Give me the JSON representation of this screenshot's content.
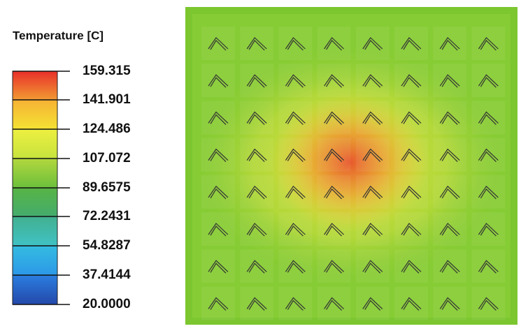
{
  "legend": {
    "title": "Temperature [C]",
    "labels": [
      "159.315",
      "141.901",
      "124.486",
      "107.072",
      "89.6575",
      "72.2431",
      "54.8287",
      "37.4144",
      "20.0000"
    ]
  }
}
